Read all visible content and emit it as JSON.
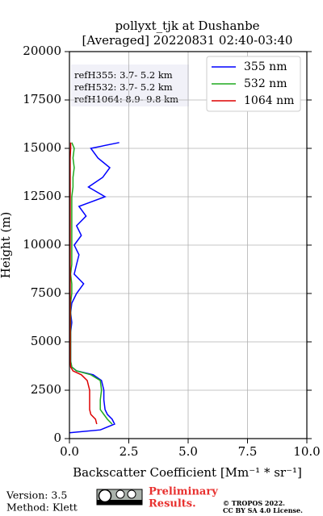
{
  "chart_data": {
    "type": "line",
    "title": "pollyxt_tjk at Dushanbe",
    "subtitle": "[Averaged] 20220831 02:40-03:40",
    "xlabel": "Backscatter Coefficient [Mm⁻¹ * sr⁻¹]",
    "ylabel": "Height (m)",
    "xlim": [
      0,
      10
    ],
    "xticks": [
      {
        "value": 0,
        "label": "0.0"
      },
      2.5,
      {
        "value": 5,
        "label": "5.0"
      },
      7.5,
      {
        "value": 10,
        "label": "10.0"
      }
    ],
    "ylim": [
      0,
      20000
    ],
    "yticks": [
      0,
      2500,
      5000,
      7500,
      10000,
      12500,
      15000,
      17500,
      20000
    ],
    "grid": true,
    "legend": "upper right",
    "annotations": [
      "refH355:  3.7- 5.2 km",
      "refH532:  3.7- 5.2 km",
      "refH1064:  8.9- 9.8 km"
    ],
    "y": [
      300,
      450,
      750,
      1000,
      1250,
      1500,
      2000,
      2500,
      3000,
      3300,
      3500,
      3700,
      4000,
      4500,
      5000,
      5500,
      6000,
      6500,
      7000,
      7500,
      8000,
      8500,
      9000,
      9500,
      10000,
      10500,
      11000,
      11500,
      12000,
      12500,
      13000,
      13500,
      14000,
      14500,
      15000,
      15300
    ],
    "series": [
      {
        "name": "355 nm",
        "color": "#0000ff",
        "values": [
          0.0,
          1.3,
          1.9,
          1.8,
          1.6,
          1.5,
          1.45,
          1.45,
          1.35,
          1.0,
          0.3,
          0.1,
          0.05,
          0.05,
          0.05,
          0.05,
          0.1,
          0.05,
          0.1,
          0.3,
          0.6,
          0.2,
          0.3,
          0.4,
          0.2,
          0.5,
          0.3,
          0.7,
          0.4,
          1.5,
          0.8,
          1.4,
          1.7,
          1.2,
          0.9,
          2.1
        ]
      },
      {
        "name": "532 nm",
        "color": "#1faa1f",
        "values": [
          null,
          null,
          1.8,
          1.6,
          1.45,
          1.3,
          1.3,
          1.35,
          1.3,
          0.9,
          0.3,
          0.1,
          0.05,
          0.05,
          0.05,
          0.05,
          0.05,
          0.05,
          0.05,
          0.1,
          0.1,
          0.05,
          0.1,
          0.1,
          0.1,
          0.1,
          0.1,
          0.1,
          0.1,
          0.1,
          0.15,
          0.15,
          0.2,
          0.15,
          0.2,
          0.1
        ]
      },
      {
        "name": "1064 nm",
        "color": "#dd0000",
        "values": [
          null,
          null,
          1.15,
          1.1,
          0.9,
          0.85,
          0.85,
          0.85,
          0.75,
          0.5,
          0.15,
          0.05,
          0.03,
          0.03,
          0.03,
          0.03,
          0.03,
          0.03,
          0.03,
          0.03,
          0.03,
          0.03,
          0.03,
          0.03,
          0.03,
          0.03,
          0.03,
          0.03,
          0.03,
          0.03,
          0.03,
          0.03,
          0.03,
          0.03,
          0.05,
          0.05
        ]
      }
    ],
    "footer": {
      "version": "Version: 3.5",
      "method": "Method: Klett",
      "preliminary": [
        "Preliminary",
        "Results."
      ],
      "copyright": [
        "© TROPOS 2022.",
        "CC BY SA 4.0 License."
      ]
    }
  }
}
